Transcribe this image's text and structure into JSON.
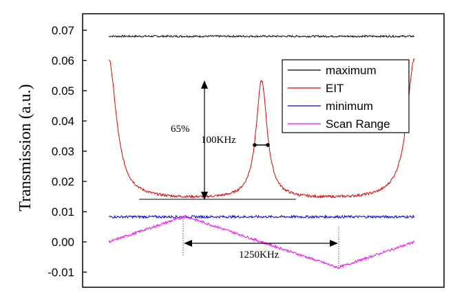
{
  "chart_data": {
    "type": "line",
    "ylabel": "Transmission (a.u.)",
    "xlabel": "",
    "ylim": [
      -0.015,
      0.075
    ],
    "yticks": [
      "0.07",
      "0.06",
      "0.05",
      "0.04",
      "0.03",
      "0.02",
      "0.01",
      "0.00",
      "-0.01"
    ],
    "ytick_values": [
      0.07,
      0.06,
      0.05,
      0.04,
      0.03,
      0.02,
      0.01,
      0.0,
      -0.01
    ],
    "xlim": [
      0,
      1
    ],
    "grid": false,
    "legend_position": "top-right",
    "series": [
      {
        "name": "maximum",
        "color": "#000000",
        "shape": "flat",
        "level": 0.068,
        "noise": 0.0003
      },
      {
        "name": "EIT",
        "color": "#e00000",
        "shape": "eit",
        "baseline": 0.014,
        "edge": 0.051,
        "peak_x": 0.5,
        "peak": 0.053,
        "noise": 0.0004
      },
      {
        "name": "minimum",
        "color": "#0000e0",
        "shape": "flat",
        "level": 0.0083,
        "noise": 0.0004
      },
      {
        "name": "Scan Range",
        "color": "#ff00ff",
        "shape": "triangle",
        "points": [
          [
            0,
            0.0
          ],
          [
            0.25,
            0.0085
          ],
          [
            0.75,
            -0.0085
          ],
          [
            1.0,
            0.0
          ]
        ],
        "noise": 0.0004
      }
    ],
    "annotations": {
      "contrast": "65%",
      "linewidth": "100KHz",
      "scan_width": "1250KHz"
    }
  }
}
